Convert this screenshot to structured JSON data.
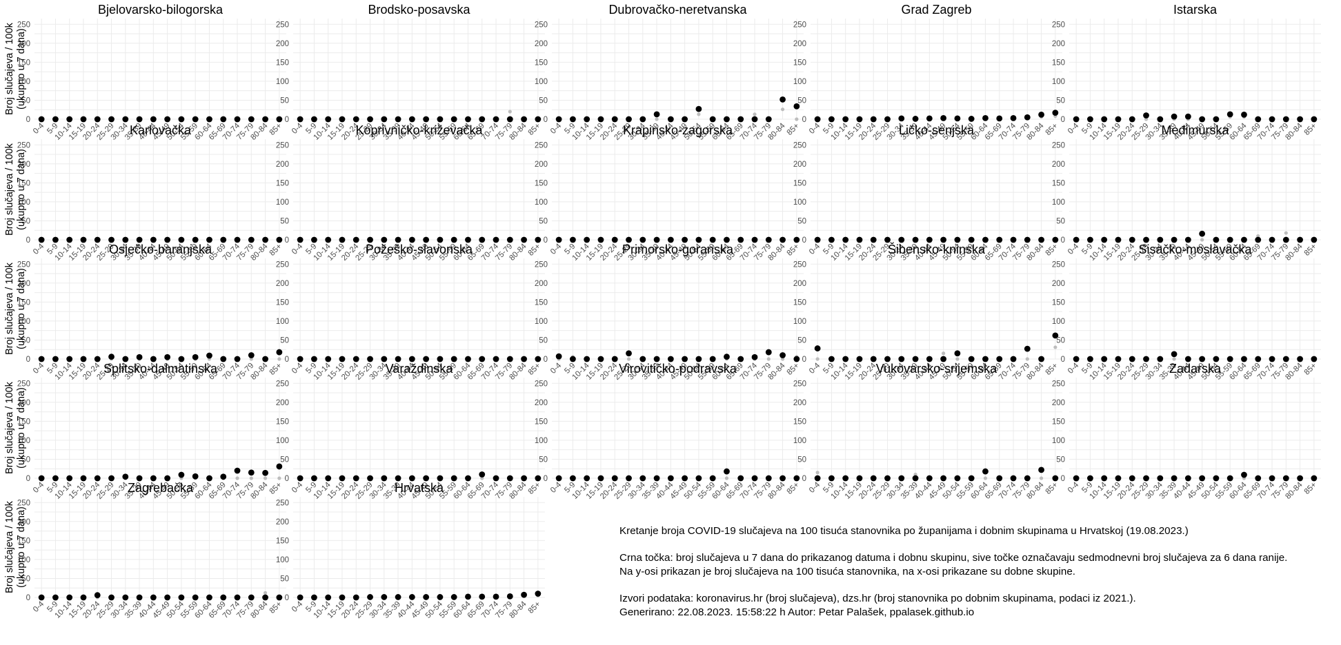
{
  "chart_data": {
    "type": "scatter",
    "ylabel_line1": "Broj slučajeva / 100k",
    "ylabel_line2": "(ukupno u 7 dana)",
    "ylim": [
      0,
      265
    ],
    "yticks": [
      0,
      50,
      100,
      150,
      200,
      250
    ],
    "grid": true,
    "categories": [
      "0-4",
      "5-9",
      "10-14",
      "15-19",
      "20-24",
      "25-29",
      "30-34",
      "35-39",
      "40-44",
      "45-49",
      "50-54",
      "55-59",
      "60-64",
      "65-69",
      "70-74",
      "75-79",
      "80-84",
      "85+"
    ],
    "series_legend": {
      "current": "black",
      "previous": "grey"
    },
    "panels": [
      {
        "title": "Bjelovarsko-bilogorska",
        "current": [
          0,
          0,
          0,
          0,
          0,
          0,
          0,
          0,
          0,
          0,
          0,
          0,
          0,
          0,
          0,
          0,
          0,
          0
        ],
        "previous": [
          0,
          0,
          0,
          0,
          0,
          0,
          0,
          0,
          0,
          0,
          0,
          0,
          0,
          0,
          0,
          0,
          0,
          0
        ]
      },
      {
        "title": "Brodsko-posavska",
        "current": [
          0,
          0,
          0,
          0,
          0,
          0,
          0,
          0,
          0,
          0,
          0,
          0,
          0,
          0,
          0,
          0,
          0,
          0
        ],
        "previous": [
          0,
          0,
          0,
          0,
          0,
          0,
          0,
          0,
          0,
          0,
          0,
          0,
          0,
          0,
          0,
          20,
          0,
          0
        ]
      },
      {
        "title": "Dubrovačko-neretvanska",
        "current": [
          0,
          0,
          0,
          0,
          0,
          0,
          0,
          13,
          0,
          0,
          27,
          0,
          0,
          0,
          0,
          0,
          52,
          34
        ],
        "previous": [
          0,
          0,
          0,
          0,
          0,
          0,
          0,
          0,
          0,
          0,
          13,
          0,
          0,
          0,
          13,
          0,
          26,
          0
        ]
      },
      {
        "title": "Grad Zagreb",
        "current": [
          0,
          0,
          0,
          0,
          0,
          0,
          2,
          1,
          2,
          3,
          2,
          1,
          3,
          2,
          3,
          5,
          12,
          17
        ],
        "previous": [
          0,
          0,
          0,
          0,
          0,
          1,
          1,
          1,
          1,
          1,
          1,
          1,
          1,
          1,
          2,
          3,
          6,
          8
        ]
      },
      {
        "title": "Istarska",
        "current": [
          0,
          0,
          0,
          0,
          0,
          10,
          0,
          7,
          7,
          0,
          0,
          13,
          12,
          0,
          0,
          0,
          0,
          0
        ],
        "previous": [
          0,
          0,
          0,
          0,
          0,
          0,
          0,
          0,
          0,
          0,
          0,
          6,
          6,
          0,
          0,
          0,
          0,
          0
        ]
      },
      {
        "title": "Karlovačka",
        "current": [
          0,
          0,
          0,
          0,
          0,
          0,
          0,
          0,
          0,
          0,
          0,
          0,
          0,
          0,
          0,
          0,
          0,
          0
        ],
        "previous": [
          0,
          0,
          0,
          0,
          0,
          0,
          0,
          0,
          0,
          0,
          0,
          0,
          0,
          0,
          0,
          0,
          0,
          0
        ]
      },
      {
        "title": "Koprivničko-križevačka",
        "current": [
          0,
          0,
          0,
          0,
          0,
          0,
          0,
          0,
          0,
          0,
          0,
          0,
          0,
          0,
          0,
          0,
          0,
          0
        ],
        "previous": [
          0,
          0,
          0,
          0,
          0,
          0,
          0,
          0,
          0,
          0,
          0,
          0,
          0,
          0,
          0,
          0,
          0,
          0
        ]
      },
      {
        "title": "Krapinsko-zagorska",
        "current": [
          0,
          0,
          0,
          0,
          0,
          0,
          0,
          0,
          0,
          0,
          0,
          0,
          0,
          0,
          0,
          0,
          0,
          0
        ],
        "previous": [
          0,
          0,
          0,
          0,
          0,
          0,
          0,
          0,
          0,
          0,
          0,
          0,
          0,
          0,
          0,
          0,
          0,
          0
        ]
      },
      {
        "title": "Ličko-senjska",
        "current": [
          0,
          0,
          0,
          0,
          0,
          0,
          0,
          0,
          0,
          0,
          0,
          0,
          0,
          0,
          0,
          0,
          0,
          0
        ],
        "previous": [
          0,
          0,
          0,
          0,
          0,
          0,
          0,
          0,
          0,
          0,
          0,
          0,
          0,
          0,
          0,
          0,
          0,
          0
        ]
      },
      {
        "title": "Međimurska",
        "current": [
          0,
          0,
          0,
          0,
          0,
          0,
          0,
          0,
          0,
          16,
          0,
          0,
          0,
          0,
          0,
          0,
          0,
          0
        ],
        "previous": [
          0,
          0,
          0,
          0,
          0,
          0,
          0,
          0,
          0,
          0,
          0,
          0,
          0,
          10,
          0,
          18,
          0,
          0
        ]
      },
      {
        "title": "Osječko-baranjska",
        "current": [
          0,
          0,
          0,
          0,
          0,
          6,
          0,
          5,
          0,
          5,
          0,
          5,
          9,
          0,
          0,
          10,
          0,
          18
        ],
        "previous": [
          0,
          0,
          0,
          0,
          0,
          0,
          0,
          0,
          0,
          0,
          0,
          0,
          0,
          0,
          0,
          0,
          0,
          0
        ]
      },
      {
        "title": "Požeško-slavonska",
        "current": [
          0,
          0,
          0,
          0,
          0,
          0,
          0,
          0,
          0,
          0,
          0,
          0,
          0,
          0,
          0,
          0,
          0,
          0
        ],
        "previous": [
          0,
          0,
          0,
          0,
          0,
          0,
          0,
          0,
          0,
          0,
          0,
          0,
          0,
          0,
          0,
          0,
          0,
          0
        ]
      },
      {
        "title": "Primorsko-goranska",
        "current": [
          7,
          0,
          0,
          0,
          0,
          15,
          0,
          0,
          0,
          0,
          0,
          0,
          6,
          0,
          5,
          18,
          10,
          0
        ],
        "previous": [
          0,
          6,
          0,
          0,
          0,
          0,
          0,
          0,
          0,
          0,
          0,
          0,
          0,
          0,
          0,
          0,
          0,
          6
        ]
      },
      {
        "title": "Šibensko-kninska",
        "current": [
          28,
          0,
          0,
          0,
          0,
          0,
          0,
          0,
          0,
          0,
          15,
          0,
          0,
          0,
          0,
          27,
          0,
          62
        ],
        "previous": [
          0,
          0,
          0,
          0,
          0,
          0,
          0,
          0,
          0,
          15,
          0,
          0,
          0,
          0,
          0,
          0,
          0,
          31
        ]
      },
      {
        "title": "Sisačko-moslavačka",
        "current": [
          0,
          0,
          0,
          0,
          0,
          0,
          0,
          13,
          0,
          0,
          0,
          0,
          0,
          0,
          0,
          0,
          0,
          0
        ],
        "previous": [
          0,
          0,
          0,
          0,
          0,
          0,
          0,
          0,
          0,
          0,
          0,
          0,
          0,
          0,
          0,
          0,
          0,
          0
        ]
      },
      {
        "title": "Splitsko-dalmatinska",
        "current": [
          0,
          0,
          0,
          0,
          0,
          0,
          4,
          0,
          0,
          0,
          9,
          5,
          0,
          4,
          20,
          15,
          14,
          31
        ],
        "previous": [
          0,
          0,
          0,
          0,
          0,
          0,
          0,
          0,
          0,
          0,
          0,
          0,
          0,
          0,
          0,
          0,
          0,
          0
        ]
      },
      {
        "title": "Varaždinska",
        "current": [
          0,
          0,
          0,
          0,
          0,
          0,
          0,
          0,
          0,
          0,
          0,
          0,
          0,
          10,
          0,
          0,
          0,
          0
        ],
        "previous": [
          0,
          0,
          0,
          0,
          0,
          0,
          0,
          0,
          0,
          0,
          0,
          0,
          0,
          0,
          0,
          0,
          0,
          0
        ]
      },
      {
        "title": "Virovitičko-podravska",
        "current": [
          0,
          0,
          0,
          0,
          0,
          0,
          0,
          0,
          0,
          0,
          0,
          0,
          18,
          0,
          0,
          0,
          0,
          0
        ],
        "previous": [
          0,
          0,
          0,
          0,
          0,
          0,
          0,
          0,
          0,
          0,
          0,
          0,
          0,
          0,
          0,
          0,
          0,
          0
        ]
      },
      {
        "title": "Vukovarsko-srijemska",
        "current": [
          0,
          0,
          0,
          0,
          0,
          0,
          0,
          0,
          0,
          0,
          0,
          0,
          18,
          0,
          0,
          0,
          22,
          0
        ],
        "previous": [
          15,
          0,
          0,
          0,
          0,
          0,
          0,
          10,
          0,
          0,
          0,
          0,
          0,
          0,
          0,
          0,
          0,
          0
        ]
      },
      {
        "title": "Zadarska",
        "current": [
          0,
          0,
          0,
          0,
          0,
          0,
          0,
          0,
          0,
          0,
          0,
          0,
          9,
          0,
          0,
          0,
          0,
          0
        ],
        "previous": [
          0,
          0,
          0,
          0,
          0,
          0,
          0,
          0,
          0,
          0,
          0,
          0,
          0,
          0,
          0,
          0,
          0,
          0
        ]
      },
      {
        "title": "Zagrebačka",
        "current": [
          0,
          0,
          0,
          0,
          6,
          0,
          0,
          0,
          0,
          0,
          0,
          0,
          0,
          0,
          0,
          0,
          0,
          0
        ],
        "previous": [
          0,
          0,
          0,
          0,
          0,
          0,
          0,
          0,
          0,
          0,
          0,
          0,
          0,
          0,
          0,
          0,
          12,
          0
        ]
      },
      {
        "title": "Hrvatska",
        "current": [
          0,
          0,
          0,
          0,
          0,
          1,
          1,
          1,
          1,
          1,
          1,
          1,
          2,
          2,
          2,
          3,
          7,
          10
        ],
        "previous": [
          0,
          0,
          0,
          0,
          0,
          1,
          0,
          1,
          1,
          1,
          1,
          1,
          1,
          1,
          1,
          2,
          3,
          5
        ]
      }
    ]
  },
  "caption": {
    "line1": "Kretanje broja COVID-19 slučajeva na 100 tisuća stanovnika po županijama i dobnim skupinama u Hrvatskoj (19.08.2023.)",
    "line2": "Crna točka: broj slučajeva u 7 dana do prikazanog datuma i dobnu skupinu, sive točke označavaju sedmodnevni broj slučajeva za 6 dana ranije.",
    "line3": "Na y-osi prikazan je broj slučajeva na 100 tisuća stanovnika, na x-osi prikazane su dobne skupine.",
    "line4": "Izvori podataka: koronavirus.hr (broj slučajeva), dzs.hr (broj stanovnika po dobnim skupinama, podaci iz 2021.).",
    "line5": "Generirano: 22.08.2023. 15:58:22 h Autor: Petar Palašek, ppalasek.github.io"
  }
}
